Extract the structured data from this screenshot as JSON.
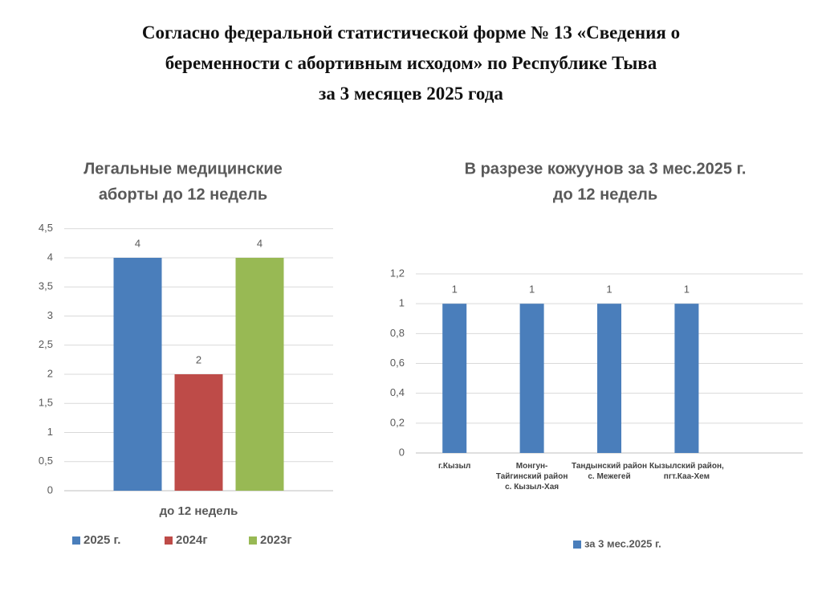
{
  "slide_title": [
    "Согласно федеральной статистической форме № 13 «Сведения о",
    "беременности с абортивным исходом» по Республике Тыва",
    "за 3 месяцев 2025 года"
  ],
  "chart_data": [
    {
      "type": "bar",
      "title": [
        "Легальные  медицинские",
        "аборты до 12 недель"
      ],
      "categories": [
        "до 12 недель"
      ],
      "series": [
        {
          "name": "2025 г.",
          "color": "#4a7ebb",
          "values": [
            4
          ]
        },
        {
          "name": "2024г",
          "color": "#be4b48",
          "values": [
            2
          ]
        },
        {
          "name": "2023г",
          "color": "#98b954",
          "values": [
            4
          ]
        }
      ],
      "ylim": [
        0,
        4.5
      ],
      "yticks": [
        0,
        {
          "value": 0.5,
          "label": "0,5"
        },
        1,
        {
          "value": 1.5,
          "label": "1,5"
        },
        2,
        {
          "value": 2.5,
          "label": "2,5"
        },
        3,
        {
          "value": 3.5,
          "label": "3,5"
        },
        4,
        {
          "value": 4.5,
          "label": "4,5"
        }
      ],
      "grid": true,
      "legend": "bottom"
    },
    {
      "type": "bar",
      "title": [
        "В разрезе кожуунов за 3 мес.2025 г.",
        "до 12 недель"
      ],
      "categories": [
        "г.Кызыл",
        "Монгун-Тайгинский район с. Кызыл-Хая",
        "Тандынский район с. Межегей",
        "Кызылский район, пгт.Каа-Хем",
        null
      ],
      "series": [
        {
          "name": "за 3 мес.2025 г.",
          "color": "#4a7ebb",
          "values": [
            1,
            1,
            1,
            1,
            null
          ]
        }
      ],
      "ylim": [
        0,
        1.2
      ],
      "yticks": [
        0,
        {
          "value": 0.2,
          "label": "0,2"
        },
        {
          "value": 0.4,
          "label": "0,4"
        },
        {
          "value": 0.6,
          "label": "0,6"
        },
        {
          "value": 0.8,
          "label": "0,8"
        },
        1,
        {
          "value": 1.2,
          "label": "1,2"
        }
      ],
      "grid": true,
      "legend": "bottom"
    }
  ]
}
